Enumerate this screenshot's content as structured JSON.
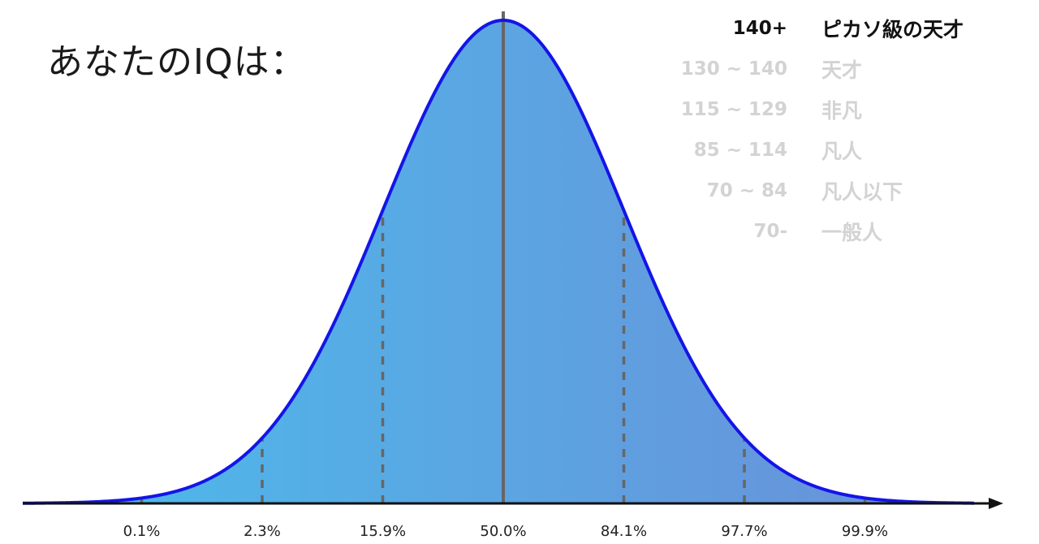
{
  "title": "あなたのIQは：",
  "legend": [
    {
      "range": "140+",
      "label": "ピカソ級の天才",
      "active": true
    },
    {
      "range": "130 ~ 140",
      "label": "天才",
      "active": false
    },
    {
      "range": "115 ~ 129",
      "label": "非凡",
      "active": false
    },
    {
      "range": "85 ~ 114",
      "label": "凡人",
      "active": false
    },
    {
      "range": "70 ~ 84",
      "label": "凡人以下",
      "active": false
    },
    {
      "range": "70-",
      "label": "一般人",
      "active": false
    }
  ],
  "colors": {
    "curve": "#1414e8",
    "fill_start": "#4bbcec",
    "fill_end": "#6b8ed8",
    "dashed": "#666666",
    "center_line": "#666666",
    "axis": "#111111"
  },
  "chart_data": {
    "type": "area",
    "distribution": "normal",
    "x": [
      -3,
      -2,
      -1,
      0,
      1,
      2,
      3
    ],
    "tick_labels": [
      "0.1%",
      "2.3%",
      "15.9%",
      "50.0%",
      "84.1%",
      "97.7%",
      "99.9%"
    ],
    "xlim": [
      -4,
      4
    ],
    "grid": false
  }
}
